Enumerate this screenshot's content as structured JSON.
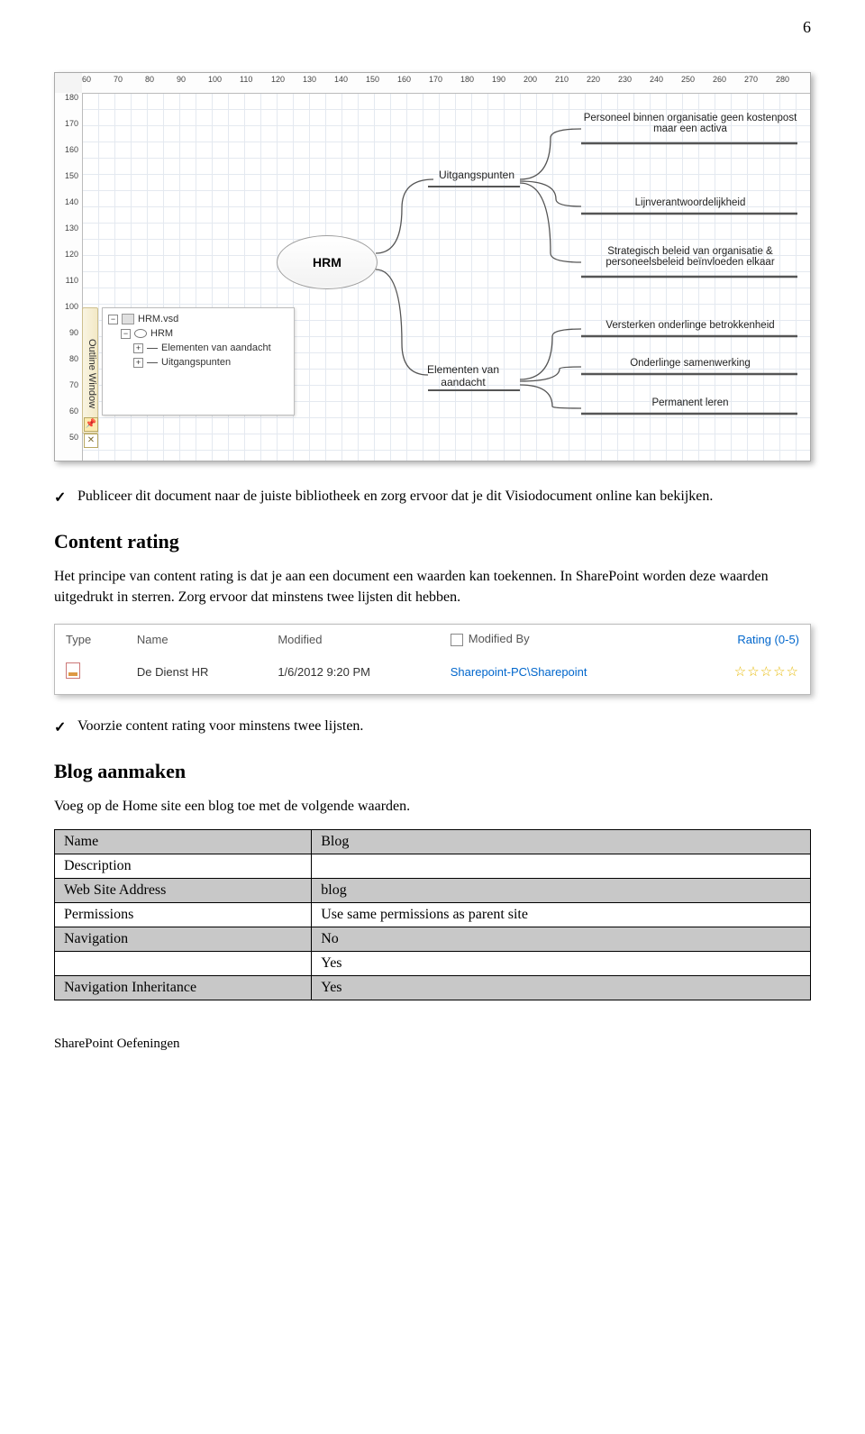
{
  "page_number": "6",
  "visio": {
    "ruler_h": [
      "60",
      "70",
      "80",
      "90",
      "100",
      "110",
      "120",
      "130",
      "140",
      "150",
      "160",
      "170",
      "180",
      "190",
      "200",
      "210",
      "220",
      "230",
      "240",
      "250",
      "260",
      "270",
      "280"
    ],
    "ruler_v": [
      "180",
      "170",
      "160",
      "150",
      "140",
      "130",
      "120",
      "110",
      "100",
      "90",
      "80",
      "70",
      "60",
      "50"
    ],
    "sidebar_tab": "Outline Window",
    "outline": {
      "file": "HRM.vsd",
      "root": "HRM",
      "children": [
        "Elementen van aandacht",
        "Uitgangspunten"
      ]
    },
    "center": "HRM",
    "branch1": "Uitgangspunten",
    "branch2": "Elementen van aandacht",
    "leaves_top": [
      "Personeel binnen organisatie geen kostenpost maar een activa",
      "Lijnverantwoordelijkheid",
      "Strategisch beleid van organisatie & personeelsbeleid beïnvloeden elkaar"
    ],
    "leaves_bottom": [
      "Versterken onderlinge betrokkenheid",
      "Onderlinge samenwerking",
      "Permanent leren"
    ]
  },
  "check1": "Publiceer dit document naar de juiste bibliotheek en zorg ervoor dat je dit Visiodocument online kan bekijken.",
  "section_content_rating": "Content rating",
  "content_rating_para": "Het principe van content rating is dat je aan een document een waarden kan toekennen. In SharePoint worden deze waarden uitgedrukt in sterren. Zorg ervoor dat minstens twee lijsten dit hebben.",
  "list": {
    "headers": [
      "Type",
      "Name",
      "Modified",
      "Modified By",
      "Rating (0-5)"
    ],
    "row": {
      "name": "De Dienst HR",
      "modified": "1/6/2012 9:20 PM",
      "modified_by": "Sharepoint-PC\\Sharepoint"
    }
  },
  "check2": "Voorzie content rating voor minstens twee lijsten.",
  "section_blog": "Blog aanmaken",
  "blog_intro": "Voeg op de Home site een blog toe met de volgende waarden.",
  "props": {
    "rows": [
      {
        "k": "Name",
        "v": "Blog",
        "grey": true
      },
      {
        "k": "Description",
        "v": "",
        "grey": false
      },
      {
        "k": "Web Site Address",
        "v": "blog",
        "grey": true
      },
      {
        "k": "Permissions",
        "v": "Use same permissions as parent site",
        "grey": false
      },
      {
        "k": "Navigation",
        "v": "No",
        "grey": true
      },
      {
        "k": "",
        "v": "Yes",
        "grey": false
      },
      {
        "k": "Navigation Inheritance",
        "v": "Yes",
        "grey": true
      }
    ]
  },
  "footer": "SharePoint Oefeningen"
}
